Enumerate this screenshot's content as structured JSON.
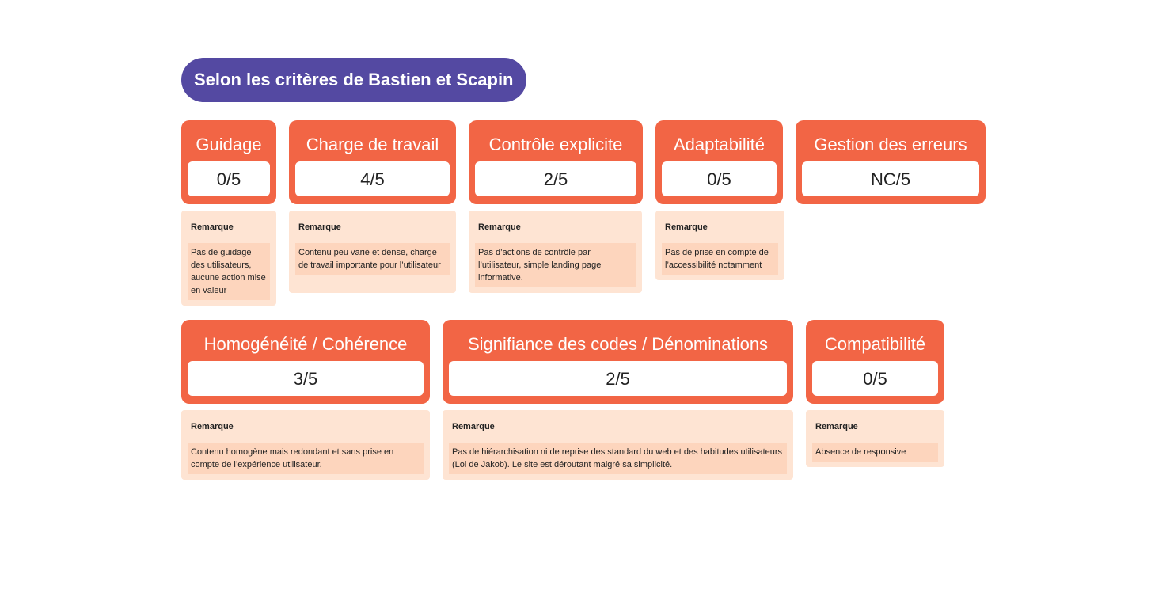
{
  "title": "Selon les critères de Bastien et Scapin",
  "note_label": "Remarque",
  "criteria": [
    {
      "name": "Guidage",
      "score": "0/5",
      "remark": "Pas de guidage des utilisateurs, aucune action mise en valeur"
    },
    {
      "name": "Charge de travail",
      "score": "4/5",
      "remark": "Contenu peu varié et dense, charge de travail importante pour l’utilisateur"
    },
    {
      "name": "Contrôle explicite",
      "score": "2/5",
      "remark": "Pas d’actions de contrôle par l’utilisateur, simple landing page informative."
    },
    {
      "name": "Adaptabilité",
      "score": "0/5",
      "remark": "Pas de prise en compte de l’accessibilité notamment"
    },
    {
      "name": "Gestion des erreurs",
      "score": "NC/5",
      "remark": ""
    },
    {
      "name": "Homogénéité / Cohérence",
      "score": "3/5",
      "remark": "Contenu homogène mais redondant et sans prise en compte de l’expérience utilisateur."
    },
    {
      "name": "Signifiance des codes / Dénominations",
      "score": "2/5",
      "remark": "Pas de hiérarchisation ni de reprise des standard du web et des habitudes utilisateurs (Loi de Jakob). Le site est déroutant malgré sa simplicité."
    },
    {
      "name": "Compatibilité",
      "score": "0/5",
      "remark": "Absence de responsive"
    }
  ],
  "colors": {
    "title_bg": "#5449a2",
    "card_bg": "#f26545",
    "note_bg": "#fee4d3",
    "note_body_bg": "#fdd5bd"
  }
}
